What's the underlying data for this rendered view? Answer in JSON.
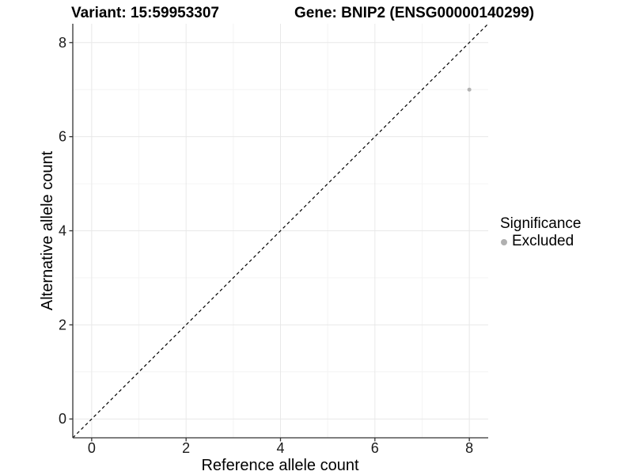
{
  "figure": {
    "title_left": "Variant: 15:59953307",
    "title_right": "Gene: BNIP2 (ENSG00000140299)"
  },
  "chart_data": {
    "type": "scatter",
    "xlabel": "Reference allele count",
    "ylabel": "Alternative allele count",
    "xlim": [
      -0.4,
      8.4
    ],
    "ylim": [
      -0.4,
      8.4
    ],
    "x_ticks": [
      0,
      2,
      4,
      6,
      8
    ],
    "y_ticks": [
      0,
      2,
      4,
      6,
      8
    ],
    "x_minor_ticks": [
      1,
      3,
      5,
      7
    ],
    "y_minor_ticks": [
      1,
      3,
      5,
      7
    ],
    "grid": true,
    "reference_line": {
      "kind": "identity",
      "style": "dashed",
      "color": "#000000"
    },
    "series": [
      {
        "name": "Excluded",
        "color": "#b3b3b3",
        "points": [
          {
            "x": 8,
            "y": 7
          }
        ]
      }
    ],
    "legend": {
      "position": "right",
      "title": "Significance",
      "entries": [
        {
          "label": "Excluded",
          "color": "#b0b0b0"
        }
      ]
    },
    "colors": {
      "point": "#b3b3b3",
      "grid_major": "#e8e8e8",
      "grid_minor": "#f4f4f4",
      "axis": "#333333",
      "text": "#000000"
    }
  }
}
